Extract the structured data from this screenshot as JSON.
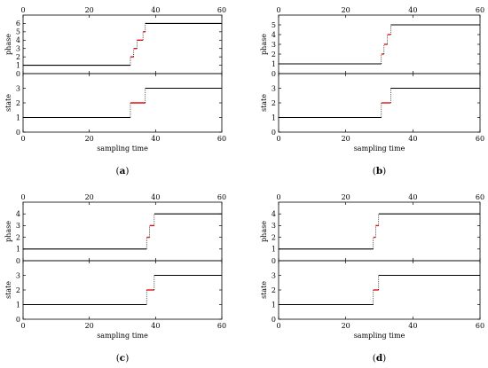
{
  "chart_data": [
    {
      "type": "line",
      "panel": "a",
      "label_prefix": "(",
      "label_letter": "a",
      "label_suffix": ")",
      "xlabel": "sampling time",
      "xlim": [
        0,
        60
      ],
      "x_ticks": [
        0,
        20,
        40,
        60
      ],
      "phase": {
        "ylabel": "phase",
        "ylim": [
          0,
          7
        ],
        "y_ticks": [
          0,
          1,
          2,
          3,
          4,
          5,
          6
        ],
        "steps": [
          [
            0,
            1
          ],
          [
            32.4,
            2
          ],
          [
            33.4,
            3
          ],
          [
            34.4,
            4
          ],
          [
            36.2,
            5
          ],
          [
            36.9,
            6
          ],
          [
            60,
            6
          ]
        ]
      },
      "state": {
        "ylabel": "state",
        "ylim": [
          0,
          4
        ],
        "y_ticks": [
          0,
          1,
          2,
          3
        ],
        "steps": [
          [
            0,
            1
          ],
          [
            32.4,
            2
          ],
          [
            36.9,
            3
          ],
          [
            60,
            3
          ]
        ]
      }
    },
    {
      "type": "line",
      "panel": "b",
      "label_prefix": "(",
      "label_letter": "b",
      "label_suffix": ")",
      "xlabel": "sampling time",
      "xlim": [
        0,
        60
      ],
      "x_ticks": [
        0,
        20,
        40,
        60
      ],
      "phase": {
        "ylabel": "phase",
        "ylim": [
          0,
          6
        ],
        "y_ticks": [
          0,
          1,
          2,
          3,
          4,
          5
        ],
        "steps": [
          [
            0,
            1
          ],
          [
            30.6,
            2
          ],
          [
            31.4,
            3
          ],
          [
            32.4,
            4
          ],
          [
            33.4,
            5
          ],
          [
            60,
            5
          ]
        ]
      },
      "state": {
        "ylabel": "state",
        "ylim": [
          0,
          4
        ],
        "y_ticks": [
          0,
          1,
          2,
          3
        ],
        "steps": [
          [
            0,
            1
          ],
          [
            30.6,
            2
          ],
          [
            33.4,
            3
          ],
          [
            60,
            3
          ]
        ]
      }
    },
    {
      "type": "line",
      "panel": "c",
      "label_prefix": "(",
      "label_letter": "c",
      "label_suffix": ")",
      "xlabel": "sampling time",
      "xlim": [
        0,
        60
      ],
      "x_ticks": [
        0,
        20,
        40,
        60
      ],
      "phase": {
        "ylabel": "phase",
        "ylim": [
          0,
          5
        ],
        "y_ticks": [
          0,
          1,
          2,
          3,
          4
        ],
        "steps": [
          [
            0,
            1
          ],
          [
            37.3,
            2
          ],
          [
            38.2,
            3
          ],
          [
            39.6,
            4
          ],
          [
            60,
            4
          ]
        ]
      },
      "state": {
        "ylabel": "state",
        "ylim": [
          0,
          4
        ],
        "y_ticks": [
          0,
          1,
          2,
          3
        ],
        "steps": [
          [
            0,
            1
          ],
          [
            37.3,
            2
          ],
          [
            39.6,
            3
          ],
          [
            60,
            3
          ]
        ]
      }
    },
    {
      "type": "line",
      "panel": "d",
      "label_prefix": "(",
      "label_letter": "d",
      "label_suffix": ")",
      "xlabel": "sampling time",
      "xlim": [
        0,
        60
      ],
      "x_ticks": [
        0,
        20,
        40,
        60
      ],
      "phase": {
        "ylabel": "phase",
        "ylim": [
          0,
          5
        ],
        "y_ticks": [
          0,
          1,
          2,
          3,
          4
        ],
        "steps": [
          [
            0,
            1
          ],
          [
            28.2,
            2
          ],
          [
            28.9,
            3
          ],
          [
            29.8,
            4
          ],
          [
            60,
            4
          ]
        ]
      },
      "state": {
        "ylabel": "state",
        "ylim": [
          0,
          4
        ],
        "y_ticks": [
          0,
          1,
          2,
          3
        ],
        "steps": [
          [
            0,
            1
          ],
          [
            28.2,
            2
          ],
          [
            29.8,
            3
          ],
          [
            60,
            3
          ]
        ]
      }
    }
  ],
  "colors": {
    "baseline": "#000000",
    "transition": "#e01010",
    "axes": "#000000"
  }
}
